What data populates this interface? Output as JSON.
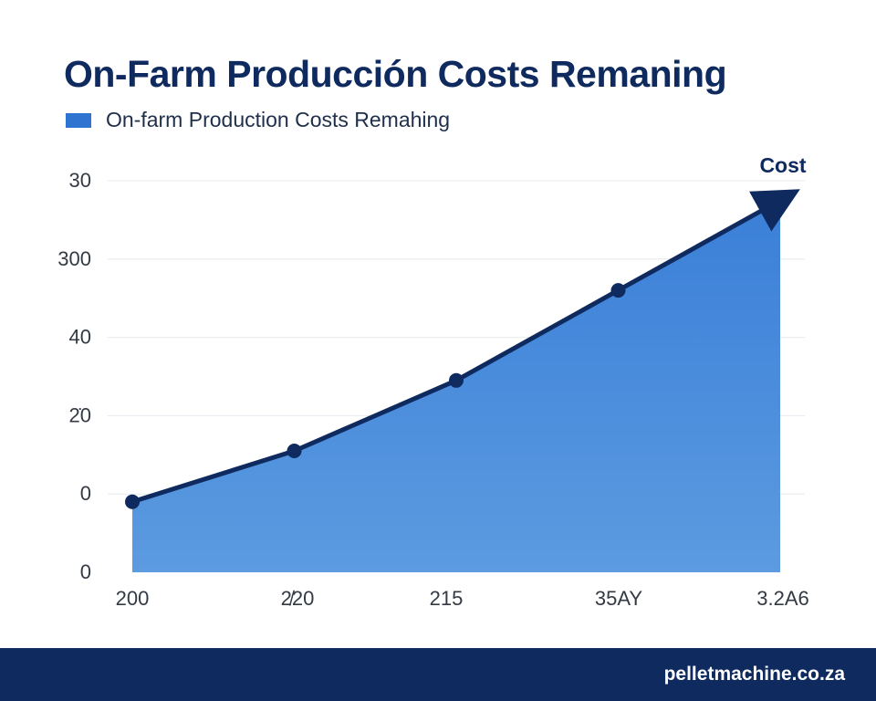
{
  "title": "On-Farm Producción Costs Remaning",
  "footer": {
    "site": "pelletmachine.co.za"
  },
  "colors": {
    "title": "#0f2a5e",
    "line": "#0f2a5e",
    "area_top": "#3a7fd8",
    "area_bottom": "#5c9be0",
    "grid": "#e6e9ee",
    "footer_bg": "#0f2a5e"
  },
  "chart_data": {
    "type": "area",
    "title": "On-Farm Producción Costs Remaning",
    "legend": [
      "On-farm Production Costs Remahing"
    ],
    "legend_position": "top-left",
    "grid": true,
    "y_tick_labels": [
      "0",
      "0",
      "2̇0",
      "40",
      "300",
      "30"
    ],
    "x_tick_labels": [
      "200",
      "2̸20",
      "215",
      "35AY",
      "3.2A6"
    ],
    "series": [
      {
        "name": "On-farm Production Costs Remahing",
        "values": [
          0.9,
          1.55,
          2.45,
          3.6,
          4.75
        ]
      }
    ],
    "ylim": [
      0,
      5
    ],
    "annotations": [
      {
        "text": "Cost",
        "target": "end-of-line"
      }
    ]
  }
}
